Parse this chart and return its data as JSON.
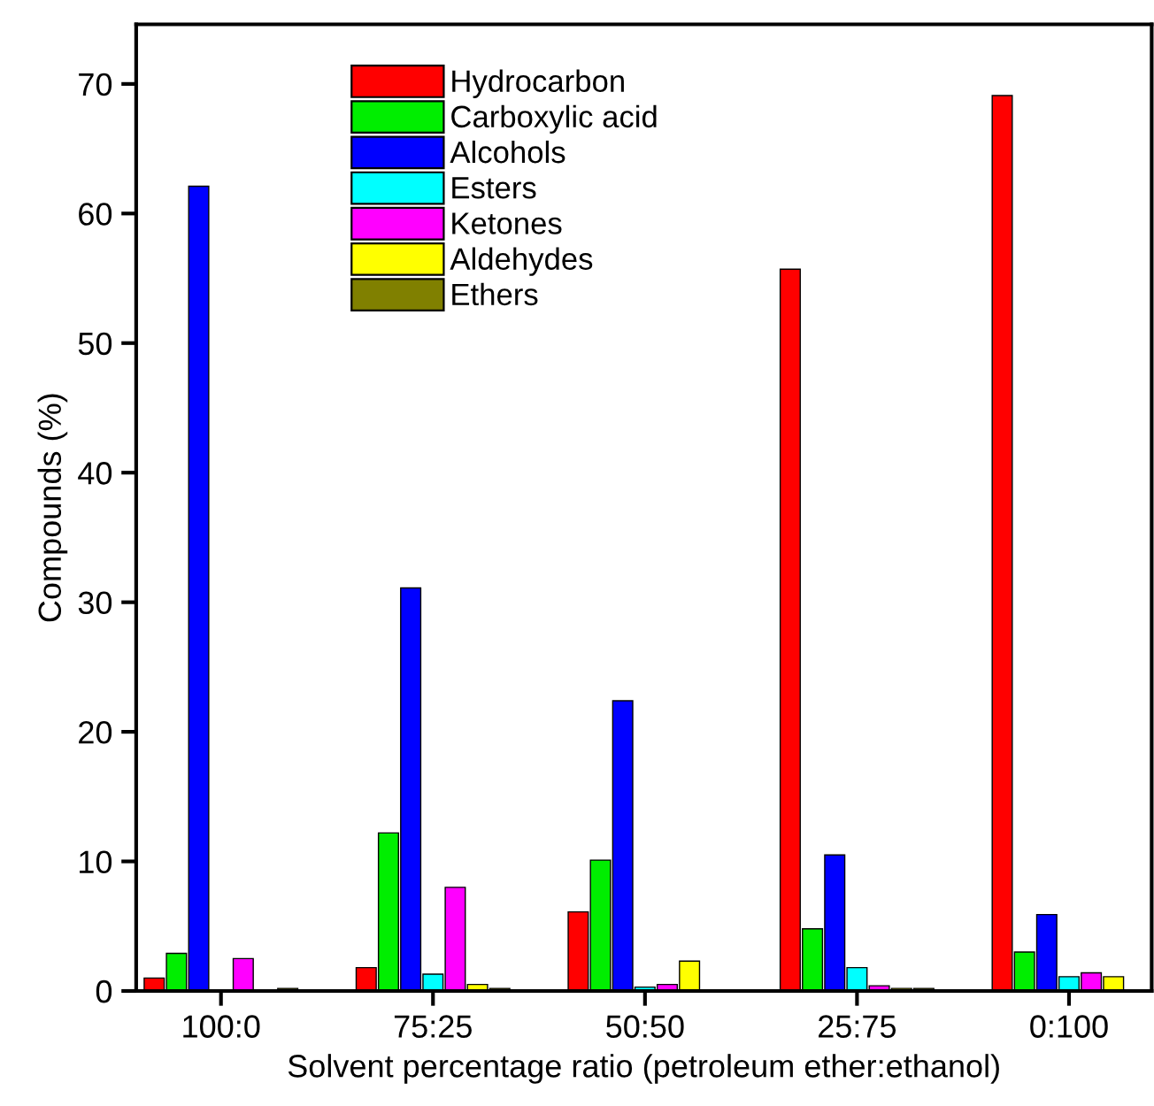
{
  "chart_data": {
    "type": "bar",
    "xlabel": "Solvent percentage ratio (petroleum ether:ethanol)",
    "ylabel": "Compounds (%)",
    "categories": [
      "100:0",
      "75:25",
      "50:50",
      "25:75",
      "0:100"
    ],
    "series": [
      {
        "name": "Hydrocarbon",
        "color": "#ff0000",
        "values": [
          1.0,
          1.8,
          6.1,
          55.7,
          69.1
        ]
      },
      {
        "name": "Carboxylic acid",
        "color": "#00ee00",
        "values": [
          2.9,
          12.2,
          10.1,
          4.8,
          3.0
        ]
      },
      {
        "name": "Alcohols",
        "color": "#0000ff",
        "values": [
          62.1,
          31.1,
          22.4,
          10.5,
          5.9
        ]
      },
      {
        "name": "Esters",
        "color": "#00ffff",
        "values": [
          null,
          1.3,
          0.3,
          1.8,
          1.1
        ]
      },
      {
        "name": "Ketones",
        "color": "#ff00ff",
        "values": [
          2.5,
          8.0,
          0.5,
          0.4,
          1.4
        ]
      },
      {
        "name": "Aldehydes",
        "color": "#ffff00",
        "values": [
          null,
          0.5,
          2.3,
          0.2,
          1.1
        ]
      },
      {
        "name": "Ethers",
        "color": "#808000",
        "values": [
          0.2,
          0.2,
          null,
          0.2,
          null
        ]
      }
    ],
    "ylim": [
      0,
      74.6
    ],
    "yticks": [
      0,
      10,
      20,
      30,
      40,
      50,
      60,
      70
    ],
    "grid": false,
    "legend": "top left"
  }
}
